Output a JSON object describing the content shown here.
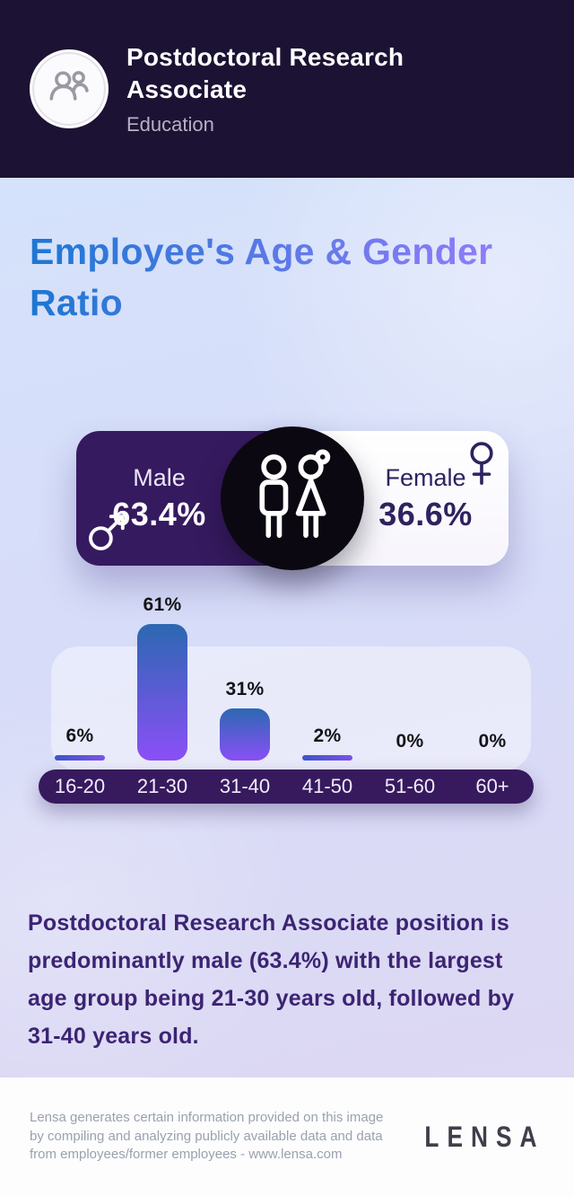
{
  "header": {
    "title": "Postdoctoral Research Associate",
    "subtitle": "Education",
    "avatar_icon": "people-icon"
  },
  "main_title": "Employee's Age & Gender Ratio",
  "gender_card": {
    "male_label": "Male",
    "male_value": "63.4%",
    "male_icon": "male-symbol-icon",
    "female_label": "Female",
    "female_value": "36.6%",
    "female_icon": "female-symbol-icon",
    "center_icon": "man-woman-icon"
  },
  "chart_data": {
    "type": "bar",
    "title": "Employee's Age & Gender Ratio",
    "categories": [
      "16-20",
      "21-30",
      "31-40",
      "41-50",
      "51-60",
      "60+"
    ],
    "values": [
      6,
      61,
      31,
      2,
      0,
      0
    ],
    "unit": "%",
    "ylim": [
      0,
      61
    ],
    "grid": false,
    "legend": false,
    "bar_colors": {
      "top": "#2c68b2",
      "bottom": "#8b4ff7",
      "thin_start": "#3d55c9",
      "thin_end": "#7b52ea"
    },
    "axis_background": "#371a5e",
    "axis_text_color": "#f2edfa"
  },
  "description": "Postdoctoral Research Associate position is predominantly male (63.4%) with the largest age group being 21-30 years old, followed by 31-40 years old.",
  "footer": {
    "disclaimer": "Lensa generates certain information provided on this image by compiling and analyzing publicly available data and data from employees/former employees - www.lensa.com",
    "logo": "LENSA"
  },
  "colors": {
    "header_background": "#1c1233",
    "title_gradient_start": "#1d77d2",
    "title_gradient_end": "#8f7bf8",
    "male_panel": "#361a60",
    "female_panel": "#ffffff",
    "center_circle": "#0b0812",
    "description_text": "#3c2473",
    "accent_purple": "#8b4ff7"
  }
}
